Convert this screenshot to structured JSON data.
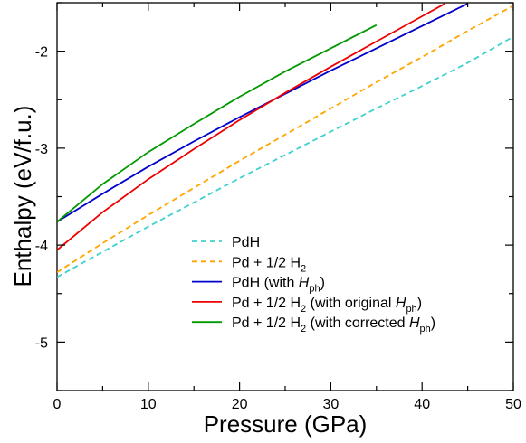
{
  "chart_data": {
    "type": "line",
    "xlabel": "Pressure (GPa)",
    "ylabel": "Enthalpy (eV/f.u.)",
    "xlim": [
      0,
      50
    ],
    "ylim": [
      -5.5,
      -1.5
    ],
    "x_ticks": [
      0,
      10,
      20,
      30,
      40,
      50
    ],
    "y_ticks": [
      -5,
      -4,
      -3,
      -2
    ],
    "x_tick_labels": [
      "0",
      "10",
      "20",
      "30",
      "40",
      "50"
    ],
    "y_tick_labels": [
      "-5",
      "-4",
      "-3",
      "-2"
    ],
    "grid": false,
    "legend_position": "lower-right",
    "series": [
      {
        "name": "PdH",
        "legend": {
          "main": "PdH",
          "sub": "",
          "suffix": ""
        },
        "color": "#40d0d0",
        "style": "dashed",
        "x": [
          0,
          5,
          10,
          15,
          20,
          25,
          30,
          35,
          40,
          45,
          50
        ],
        "y": [
          -4.33,
          -4.07,
          -3.81,
          -3.56,
          -3.31,
          -3.07,
          -2.83,
          -2.59,
          -2.36,
          -2.12,
          -1.85
        ]
      },
      {
        "name": "Pd + 1/2 H2",
        "legend": {
          "main": "Pd + 1/2 H",
          "sub": "2",
          "suffix": ""
        },
        "color": "#ffa500",
        "style": "dashed",
        "x": [
          0,
          5,
          10,
          15,
          20,
          25,
          30,
          35,
          40,
          45,
          50
        ],
        "y": [
          -4.28,
          -3.98,
          -3.69,
          -3.41,
          -3.13,
          -2.86,
          -2.59,
          -2.32,
          -2.06,
          -1.79,
          -1.53
        ]
      },
      {
        "name": "PdH (with Hph)",
        "legend": {
          "main": "PdH (with ",
          "italic": "H",
          "sub": "ph",
          "suffix": ")"
        },
        "color": "#0000cc",
        "style": "solid",
        "x": [
          0,
          5,
          10,
          15,
          20,
          25,
          30,
          35,
          40,
          45
        ],
        "y": [
          -3.76,
          -3.47,
          -3.19,
          -2.93,
          -2.68,
          -2.44,
          -2.2,
          -1.97,
          -1.74,
          -1.51
        ]
      },
      {
        "name": "Pd + 1/2 H2 (with original Hph)",
        "legend": {
          "main": "Pd + 1/2 H",
          "sub": "2",
          "middle": " (with original ",
          "italic": "H",
          "sub2": "ph",
          "suffix": ")"
        },
        "color": "#ee0000",
        "style": "solid",
        "x": [
          0,
          5,
          10,
          15,
          20,
          25,
          30,
          35,
          40,
          42.5
        ],
        "y": [
          -4.05,
          -3.66,
          -3.32,
          -3.01,
          -2.71,
          -2.43,
          -2.16,
          -1.9,
          -1.64,
          -1.51
        ]
      },
      {
        "name": "Pd + 1/2 H2 (with corrected Hph)",
        "legend": {
          "main": "Pd + 1/2 H",
          "sub": "2",
          "middle": " (with corrected ",
          "italic": "H",
          "sub2": "ph",
          "suffix": ")"
        },
        "color": "#009900",
        "style": "solid",
        "x": [
          0,
          5,
          10,
          15,
          20,
          25,
          30,
          35
        ],
        "y": [
          -3.76,
          -3.37,
          -3.04,
          -2.75,
          -2.47,
          -2.21,
          -1.97,
          -1.73
        ]
      }
    ]
  }
}
